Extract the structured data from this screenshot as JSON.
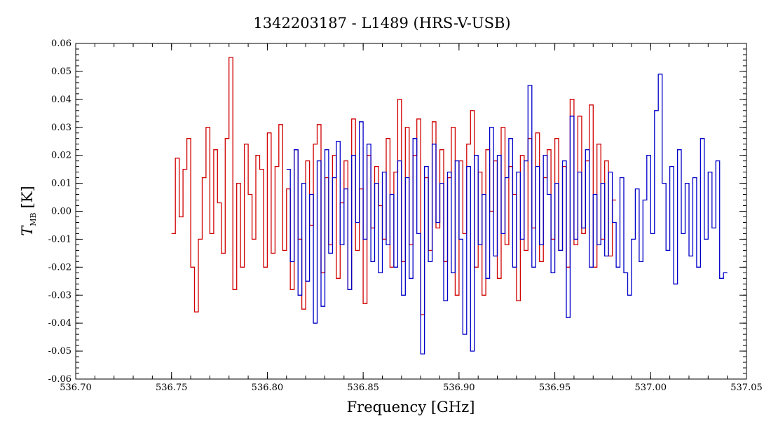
{
  "chart_data": {
    "type": "line",
    "title": "1342203187 - L1489 (HRS-V-USB)",
    "xlabel": "Frequency [GHz]",
    "ylabel_main": "T",
    "ylabel_sub": "MB",
    "ylabel_unit": "[K]",
    "xlim": [
      536.7,
      537.05
    ],
    "ylim": [
      -0.06,
      0.06
    ],
    "xticks": [
      536.7,
      536.75,
      536.8,
      536.85,
      536.9,
      536.95,
      537.0,
      537.05
    ],
    "xtick_labels": [
      "536.70",
      "536.75",
      "536.80",
      "536.85",
      "536.90",
      "536.95",
      "537.00",
      "537.05"
    ],
    "yticks": [
      -0.06,
      -0.05,
      -0.04,
      -0.03,
      -0.02,
      -0.01,
      0.0,
      0.01,
      0.02,
      0.03,
      0.04,
      0.05,
      0.06
    ],
    "ytick_labels": [
      "-0.06",
      "-0.05",
      "-0.04",
      "-0.03",
      "-0.02",
      "-0.01",
      "0.00",
      "0.01",
      "0.02",
      "0.03",
      "0.04",
      "0.05",
      "0.06"
    ],
    "grid": false,
    "drawstyle": "steps",
    "series": [
      {
        "color": "#d00000",
        "x": [
          536.75,
          536.752,
          536.754,
          536.756,
          536.758,
          536.76,
          536.762,
          536.764,
          536.766,
          536.768,
          536.77,
          536.772,
          536.774,
          536.776,
          536.778,
          536.78,
          536.782,
          536.784,
          536.786,
          536.788,
          536.79,
          536.792,
          536.794,
          536.796,
          536.798,
          536.8,
          536.802,
          536.804,
          536.806,
          536.808,
          536.81,
          536.812,
          536.814,
          536.816,
          536.818,
          536.82,
          536.822,
          536.824,
          536.826,
          536.828,
          536.83,
          536.832,
          536.834,
          536.836,
          536.838,
          536.84,
          536.842,
          536.844,
          536.846,
          536.848,
          536.85,
          536.852,
          536.854,
          536.856,
          536.858,
          536.86,
          536.862,
          536.864,
          536.866,
          536.868,
          536.87,
          536.872,
          536.874,
          536.876,
          536.878,
          536.88,
          536.882,
          536.884,
          536.886,
          536.888,
          536.89,
          536.892,
          536.894,
          536.896,
          536.898,
          536.9,
          536.902,
          536.904,
          536.906,
          536.908,
          536.91,
          536.912,
          536.914,
          536.916,
          536.918,
          536.92,
          536.922,
          536.924,
          536.926,
          536.928,
          536.93,
          536.932,
          536.934,
          536.936,
          536.938,
          536.94,
          536.942,
          536.944,
          536.946,
          536.948,
          536.95,
          536.952,
          536.954,
          536.956,
          536.958,
          536.96,
          536.962,
          536.964,
          536.966,
          536.968,
          536.97,
          536.972,
          536.974,
          536.976,
          536.978,
          536.98
        ],
        "y": [
          -0.008,
          0.019,
          -0.002,
          0.015,
          0.026,
          -0.02,
          -0.036,
          -0.01,
          0.012,
          0.03,
          -0.008,
          0.022,
          0.003,
          -0.015,
          0.026,
          0.055,
          -0.028,
          0.01,
          -0.02,
          0.024,
          0.006,
          -0.01,
          0.02,
          0.015,
          -0.02,
          0.028,
          -0.015,
          0.016,
          0.031,
          -0.014,
          0.008,
          -0.028,
          0.022,
          -0.01,
          -0.035,
          0.018,
          -0.005,
          0.024,
          0.031,
          -0.022,
          0.012,
          -0.012,
          0.02,
          -0.024,
          0.003,
          0.018,
          -0.028,
          0.033,
          -0.014,
          0.008,
          -0.033,
          0.02,
          -0.006,
          0.016,
          0.002,
          -0.01,
          0.026,
          -0.02,
          0.014,
          0.04,
          -0.018,
          0.03,
          -0.012,
          0.02,
          0.033,
          -0.037,
          0.012,
          -0.014,
          0.032,
          -0.006,
          0.022,
          -0.018,
          0.012,
          0.03,
          -0.03,
          0.018,
          -0.008,
          0.024,
          0.036,
          -0.02,
          0.014,
          -0.03,
          0.022,
          0.0,
          0.018,
          -0.024,
          0.03,
          -0.012,
          0.016,
          0.006,
          -0.032,
          0.02,
          -0.014,
          0.026,
          -0.006,
          0.028,
          -0.018,
          0.012,
          0.022,
          -0.01,
          0.026,
          -0.014,
          0.016,
          -0.02,
          0.04,
          -0.012,
          0.034,
          -0.008,
          0.018,
          0.038,
          -0.02,
          0.024,
          -0.01,
          0.018,
          -0.016,
          0.004
        ]
      },
      {
        "color": "#0000c8",
        "x": [
          536.81,
          536.812,
          536.814,
          536.816,
          536.818,
          536.82,
          536.822,
          536.824,
          536.826,
          536.828,
          536.83,
          536.832,
          536.834,
          536.836,
          536.838,
          536.84,
          536.842,
          536.844,
          536.846,
          536.848,
          536.85,
          536.852,
          536.854,
          536.856,
          536.858,
          536.86,
          536.862,
          536.864,
          536.866,
          536.868,
          536.87,
          536.872,
          536.874,
          536.876,
          536.878,
          536.88,
          536.882,
          536.884,
          536.886,
          536.888,
          536.89,
          536.892,
          536.894,
          536.896,
          536.898,
          536.9,
          536.902,
          536.904,
          536.906,
          536.908,
          536.91,
          536.912,
          536.914,
          536.916,
          536.918,
          536.92,
          536.922,
          536.924,
          536.926,
          536.928,
          536.93,
          536.932,
          536.934,
          536.936,
          536.938,
          536.94,
          536.942,
          536.944,
          536.946,
          536.948,
          536.95,
          536.952,
          536.954,
          536.956,
          536.958,
          536.96,
          536.962,
          536.964,
          536.966,
          536.968,
          536.97,
          536.972,
          536.974,
          536.976,
          536.978,
          536.98,
          536.982,
          536.984,
          536.986,
          536.988,
          536.99,
          536.992,
          536.994,
          536.996,
          536.998,
          537.0,
          537.002,
          537.004,
          537.006,
          537.008,
          537.01,
          537.012,
          537.014,
          537.016,
          537.018,
          537.02,
          537.022,
          537.024,
          537.026,
          537.028,
          537.03,
          537.032,
          537.034,
          537.036,
          537.038
        ],
        "y": [
          0.015,
          -0.018,
          0.022,
          -0.03,
          0.01,
          -0.025,
          0.006,
          -0.04,
          0.018,
          -0.034,
          0.022,
          -0.015,
          0.012,
          0.025,
          -0.012,
          0.008,
          -0.028,
          0.02,
          -0.004,
          0.032,
          -0.01,
          0.024,
          -0.018,
          0.01,
          -0.022,
          0.014,
          -0.012,
          0.006,
          -0.02,
          0.018,
          -0.03,
          0.012,
          -0.024,
          0.026,
          -0.008,
          -0.051,
          0.016,
          -0.018,
          0.024,
          -0.004,
          0.01,
          -0.032,
          0.014,
          -0.022,
          0.018,
          -0.01,
          -0.044,
          0.016,
          -0.05,
          0.02,
          -0.012,
          0.006,
          -0.024,
          0.03,
          -0.016,
          0.02,
          -0.008,
          0.012,
          0.026,
          -0.02,
          0.014,
          -0.01,
          0.018,
          0.045,
          -0.02,
          0.016,
          -0.012,
          0.02,
          0.006,
          -0.022,
          0.01,
          -0.014,
          0.018,
          -0.038,
          0.034,
          -0.01,
          0.014,
          -0.006,
          0.022,
          -0.02,
          0.006,
          -0.012,
          0.01,
          -0.016,
          0.014,
          -0.004,
          -0.02,
          0.012,
          -0.022,
          -0.03,
          -0.01,
          0.008,
          -0.018,
          0.004,
          0.02,
          -0.008,
          0.036,
          0.049,
          0.01,
          -0.014,
          0.016,
          -0.026,
          0.022,
          -0.008,
          0.01,
          -0.016,
          0.012,
          -0.02,
          0.026,
          -0.01,
          0.014,
          -0.006,
          0.018,
          -0.024,
          -0.022
        ]
      }
    ]
  }
}
